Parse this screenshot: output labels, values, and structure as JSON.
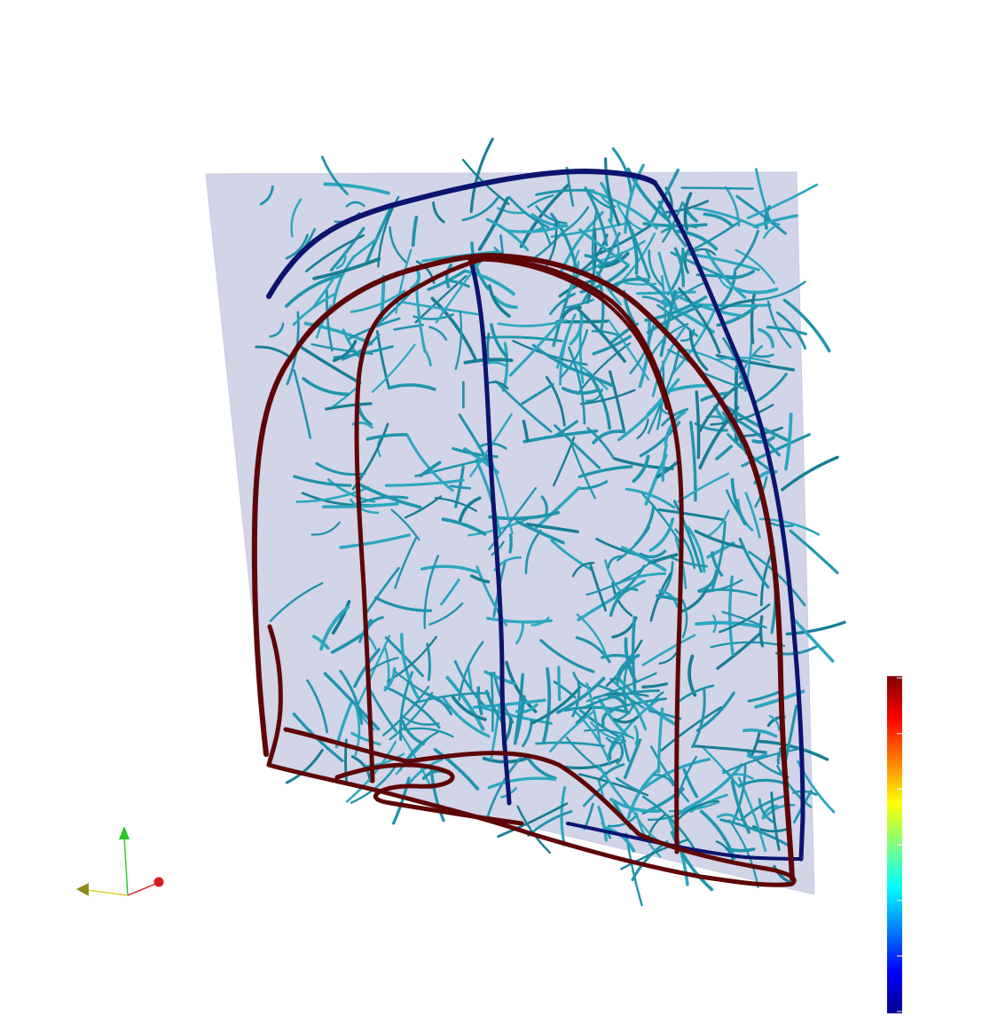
{
  "scene": {
    "plane_color": "#d2d4e8",
    "network_color": "#1f95ad",
    "vessel_red": "#6b0a0a",
    "vessel_blue": "#0c1470"
  },
  "colorbar": {
    "colormap": "jet",
    "tick_count": 7,
    "orientation": "vertical"
  },
  "axes_triad": {
    "x_color": "#d81b1b",
    "y_color": "#27c427",
    "z_color": "#d8cf2a"
  }
}
